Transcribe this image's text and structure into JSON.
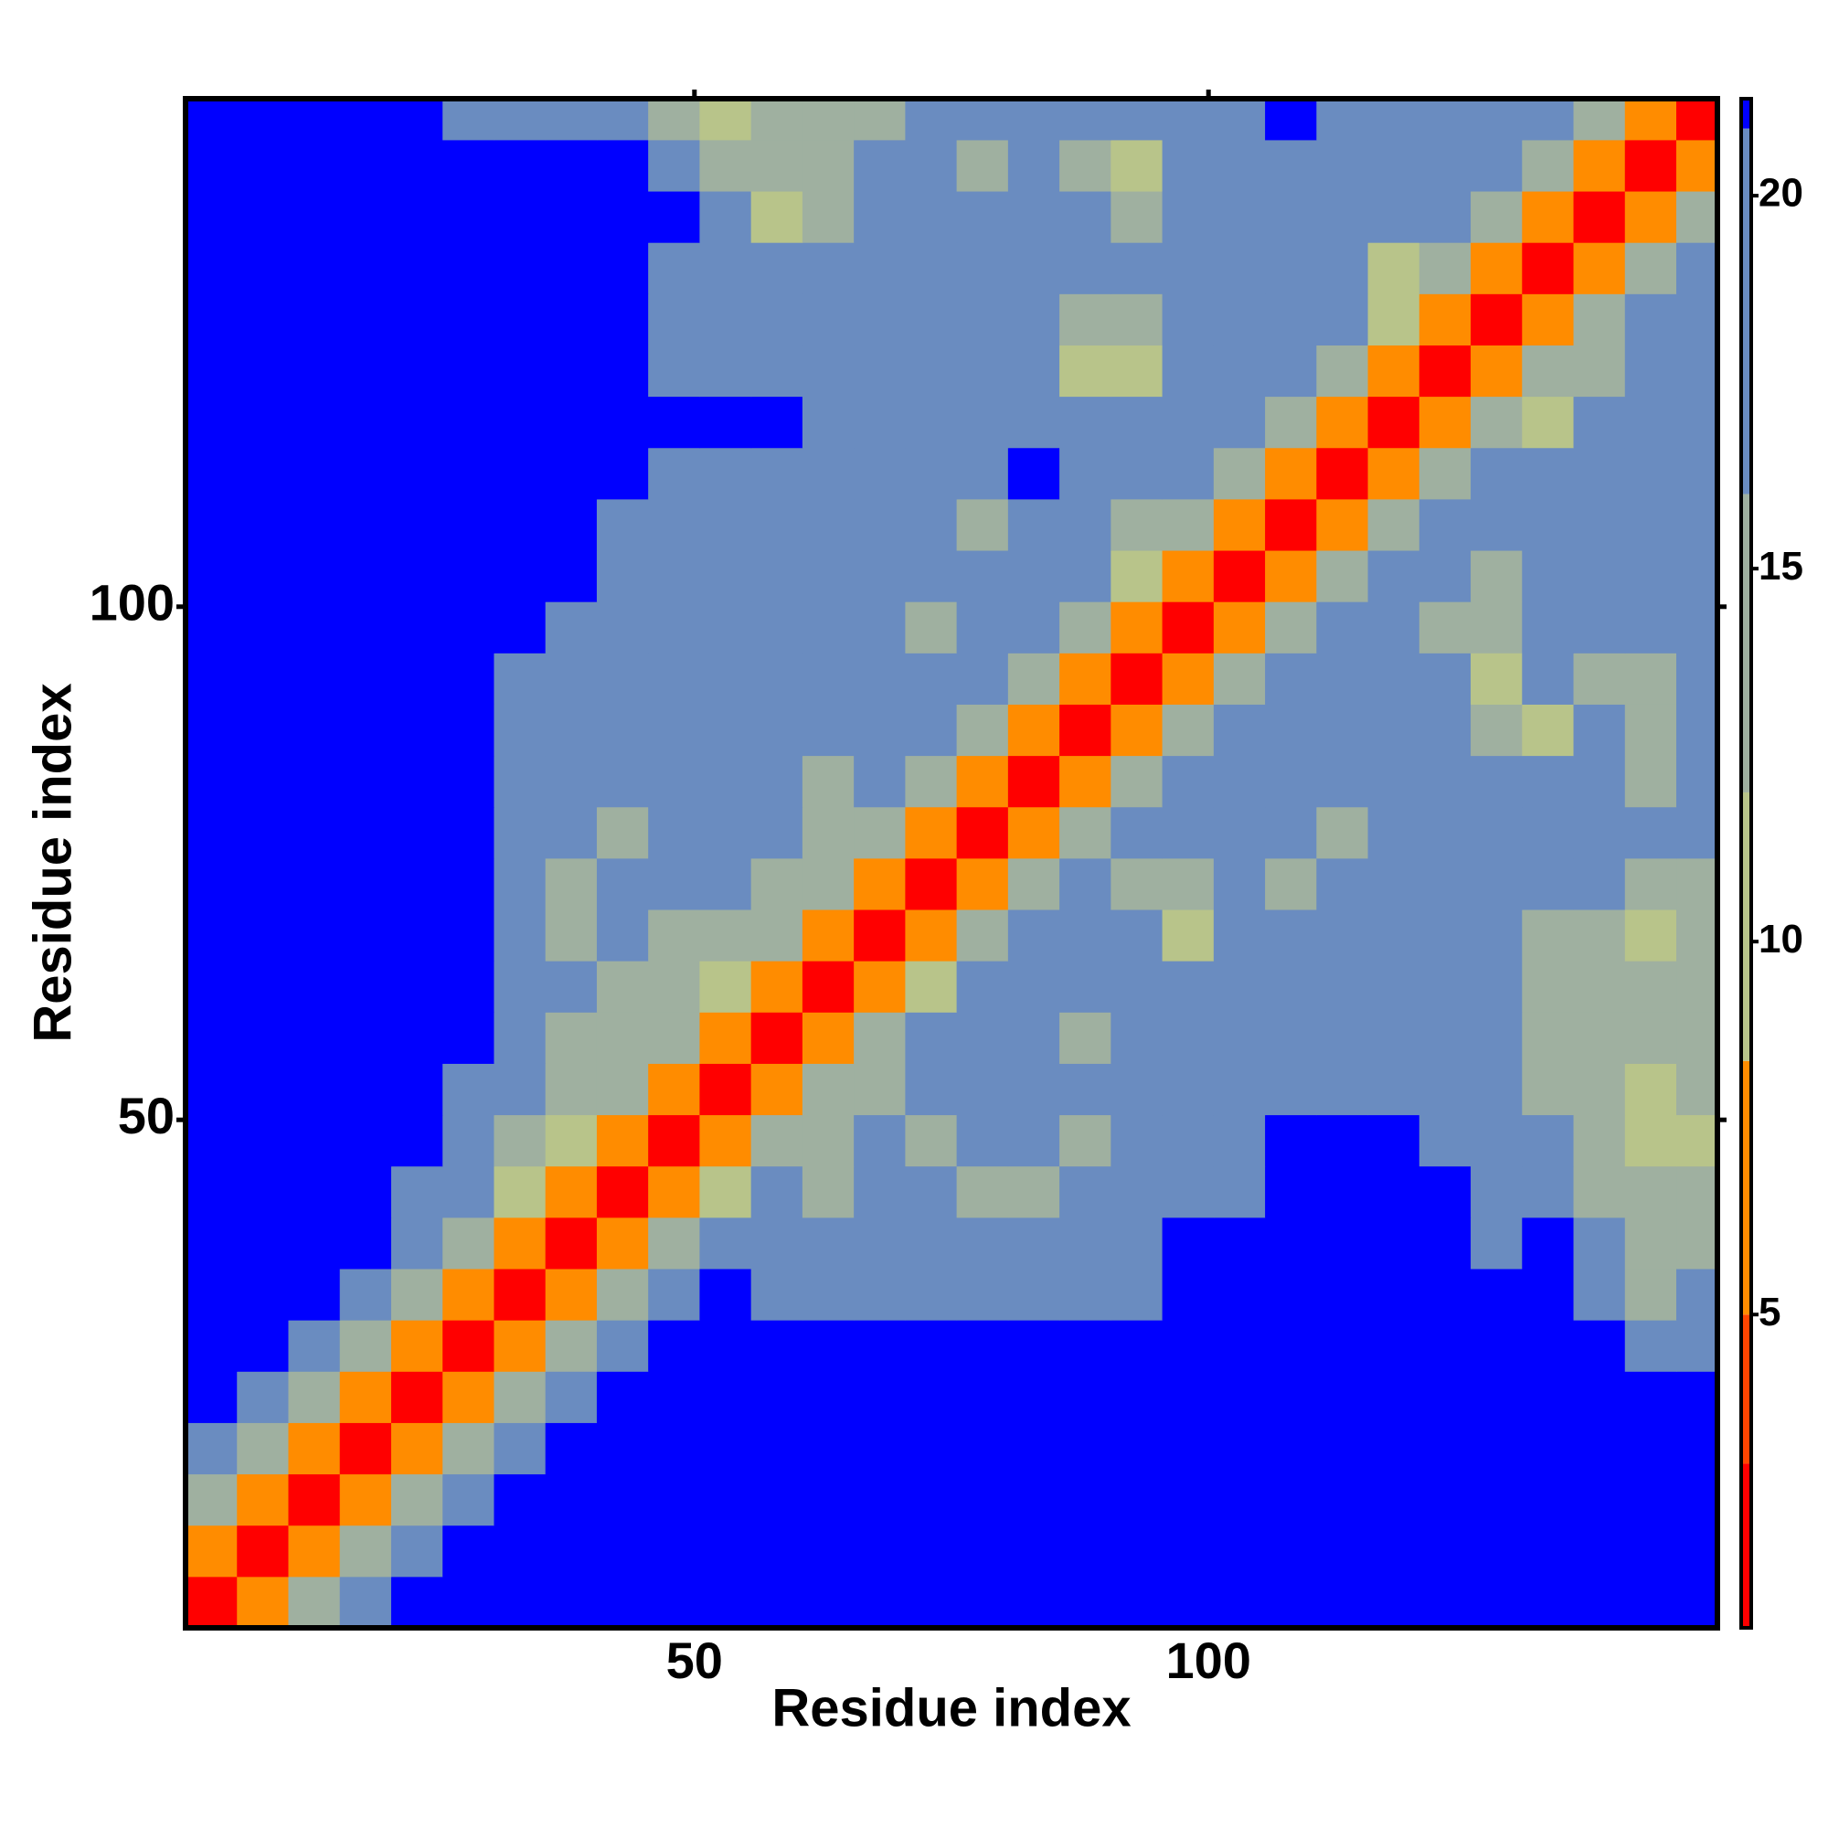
{
  "chart_data": {
    "type": "heatmap",
    "xlabel": "Residue index",
    "ylabel": "Residue index",
    "xlim": [
      0.5,
      149.5
    ],
    "ylim": [
      0.5,
      149.5
    ],
    "xticks": [
      50,
      100
    ],
    "yticks": [
      50,
      100
    ],
    "zlim": [
      0.8,
      21.3
    ],
    "zticks": [
      5,
      10,
      15,
      20
    ],
    "colorscale": [
      [
        0.8,
        "#ff0000"
      ],
      [
        3,
        "#ff4500"
      ],
      [
        5,
        "#ff8c00"
      ],
      [
        8.4,
        "#b8c48a"
      ],
      [
        12,
        "#9fb0a0"
      ],
      [
        16,
        "#6a8cc0"
      ],
      [
        20.9,
        "#0000ff"
      ]
    ],
    "x_bins": [
      0.5,
      5.5,
      10.5,
      15.5,
      20.5,
      25.5,
      30.5,
      35.5,
      40.5,
      45.5,
      50.5,
      55.5,
      60.5,
      65.5,
      70.5,
      75.5,
      80.5,
      85.5,
      90.5,
      95.5,
      100.5,
      105.5,
      110.5,
      115.5,
      120.5,
      125.5,
      130.5,
      135.5,
      140.5,
      145.5,
      149.5
    ],
    "y_bins": [
      0.5,
      5.5,
      10.5,
      15.5,
      20.5,
      25.5,
      30.5,
      35.5,
      40.5,
      45.5,
      50.5,
      55.5,
      60.5,
      65.5,
      70.5,
      75.5,
      80.5,
      85.5,
      90.5,
      95.5,
      100.5,
      105.5,
      110.5,
      115.5,
      120.5,
      125.5,
      130.5,
      135.5,
      140.5,
      145.5,
      149.5
    ],
    "z": [
      [
        2,
        6,
        12,
        18,
        21,
        21,
        21,
        21,
        21,
        21,
        21,
        21,
        21,
        21,
        21,
        21,
        21,
        21,
        21,
        21,
        21,
        21,
        21,
        21,
        21,
        21,
        21,
        21,
        21,
        21
      ],
      [
        6,
        2,
        6,
        12,
        18,
        21,
        21,
        21,
        21,
        21,
        21,
        21,
        21,
        21,
        21,
        21,
        21,
        21,
        21,
        21,
        21,
        21,
        21,
        21,
        21,
        21,
        21,
        21,
        21,
        21
      ],
      [
        12,
        6,
        2,
        6,
        12,
        18,
        21,
        21,
        21,
        21,
        21,
        21,
        21,
        21,
        21,
        21,
        21,
        21,
        21,
        21,
        21,
        21,
        21,
        21,
        21,
        21,
        21,
        21,
        21,
        21
      ],
      [
        18,
        12,
        6,
        2,
        6,
        12,
        18,
        21,
        21,
        21,
        21,
        21,
        21,
        21,
        21,
        21,
        21,
        21,
        21,
        21,
        21,
        21,
        21,
        21,
        21,
        21,
        21,
        21,
        21,
        21
      ],
      [
        21,
        18,
        12,
        6,
        2,
        6,
        12,
        18,
        21,
        21,
        21,
        21,
        21,
        21,
        21,
        21,
        21,
        21,
        21,
        21,
        21,
        21,
        21,
        21,
        21,
        21,
        21,
        21,
        21,
        21
      ],
      [
        21,
        21,
        18,
        12,
        6,
        2,
        6,
        12,
        19,
        21,
        21,
        21,
        21,
        21,
        21,
        21,
        21,
        21,
        21,
        21,
        21,
        21,
        21,
        21,
        21,
        21,
        21,
        21,
        19,
        19
      ],
      [
        21,
        21,
        21,
        18,
        12,
        6,
        2,
        6,
        13,
        17,
        21,
        19,
        19,
        19,
        19,
        19,
        19,
        19,
        19,
        21,
        21,
        21,
        21,
        21,
        21,
        21,
        21,
        17,
        15,
        18
      ],
      [
        21,
        21,
        21,
        21,
        17,
        12,
        6,
        2,
        6,
        12,
        16,
        17,
        17,
        16,
        16,
        16,
        17,
        17,
        19,
        21,
        21,
        21,
        21,
        21,
        21,
        19,
        21,
        16,
        13,
        15
      ],
      [
        21,
        21,
        21,
        21,
        19,
        16,
        11,
        6,
        2,
        6,
        11,
        16,
        15,
        16,
        16,
        15,
        15,
        16,
        17,
        19,
        19,
        21,
        21,
        21,
        21,
        19,
        18,
        15,
        12,
        13
      ],
      [
        21,
        21,
        21,
        21,
        21,
        17,
        14,
        10,
        6,
        2,
        6,
        13,
        15,
        16,
        15,
        17,
        16,
        15,
        17,
        20,
        18,
        21,
        21,
        21,
        19,
        18,
        16,
        13,
        9,
        9
      ],
      [
        21,
        21,
        21,
        21,
        21,
        19,
        16,
        14,
        13,
        6,
        2,
        6,
        13,
        15,
        20,
        20,
        16,
        16,
        16,
        18,
        18,
        19,
        18,
        19,
        18,
        17,
        15,
        12,
        9,
        12
      ],
      [
        21,
        21,
        21,
        21,
        21,
        21,
        16,
        15,
        14,
        12,
        6,
        2,
        6,
        12,
        17,
        20,
        16,
        15,
        16,
        19,
        20,
        18,
        19,
        18,
        17,
        16,
        13,
        12,
        14,
        15
      ],
      [
        21,
        21,
        21,
        21,
        21,
        21,
        17,
        16,
        15,
        14,
        11,
        7,
        2,
        6,
        11,
        17,
        18,
        16,
        17,
        19,
        20,
        20,
        19,
        17,
        18,
        16,
        14,
        14,
        12,
        14
      ],
      [
        21,
        21,
        21,
        21,
        21,
        21,
        17,
        15,
        16,
        15,
        14,
        13,
        6,
        2,
        6,
        13,
        18,
        16,
        16,
        9,
        17,
        17,
        18,
        20,
        19,
        17,
        15,
        15,
        9,
        14
      ],
      [
        21,
        21,
        21,
        21,
        21,
        21,
        18,
        15,
        16,
        16,
        16,
        14,
        12,
        6,
        2,
        6,
        14,
        16,
        15,
        15,
        16,
        14,
        16,
        20,
        19,
        17,
        16,
        16,
        14,
        13
      ],
      [
        21,
        21,
        21,
        21,
        21,
        21,
        18,
        16,
        15,
        17,
        17,
        16,
        14,
        12,
        6,
        2,
        6,
        15,
        17,
        18,
        18,
        16,
        15,
        18,
        18,
        16,
        17,
        16,
        17,
        18
      ],
      [
        21,
        21,
        21,
        21,
        21,
        21,
        18,
        16,
        16,
        17,
        18,
        16,
        15,
        16,
        12,
        6,
        2,
        6,
        14,
        17,
        20,
        20,
        19,
        16,
        17,
        16,
        16,
        16,
        15,
        17
      ],
      [
        21,
        21,
        21,
        21,
        21,
        21,
        19,
        16,
        17,
        17,
        17,
        17,
        16,
        17,
        16,
        13,
        6,
        2,
        6,
        15,
        20,
        20,
        19,
        17,
        16,
        12,
        10,
        16,
        15,
        16
      ],
      [
        21,
        21,
        21,
        21,
        21,
        21,
        19,
        17,
        16,
        18,
        18,
        17,
        16,
        16,
        17,
        16,
        14,
        6,
        2,
        6,
        14,
        17,
        17,
        17,
        16,
        10,
        16,
        15,
        13,
        17
      ],
      [
        21,
        21,
        21,
        21,
        21,
        21,
        21,
        19,
        17,
        16,
        16,
        16,
        16,
        16,
        13,
        17,
        16,
        13,
        6,
        2,
        6,
        13,
        16,
        18,
        15,
        14,
        17,
        16,
        17,
        19
      ],
      [
        21,
        21,
        21,
        21,
        21,
        21,
        21,
        21,
        20,
        18,
        17,
        17,
        16,
        16,
        18,
        17,
        17,
        16,
        11,
        7,
        2,
        6,
        12,
        16,
        16,
        15,
        17,
        18,
        17,
        18
      ],
      [
        21,
        21,
        21,
        21,
        21,
        21,
        21,
        21,
        20,
        19,
        19,
        17,
        16,
        16,
        16,
        15,
        20,
        17,
        15,
        12,
        7,
        2,
        6,
        14,
        17,
        17,
        18,
        19,
        18,
        20
      ],
      [
        21,
        21,
        21,
        21,
        21,
        21,
        21,
        21,
        21,
        19,
        20,
        18,
        17,
        16,
        16,
        18,
        21,
        17,
        16,
        17,
        15,
        6,
        2,
        6,
        13,
        17,
        17,
        18,
        19,
        19
      ],
      [
        21,
        21,
        21,
        21,
        21,
        21,
        21,
        21,
        21,
        21,
        21,
        21,
        18,
        16,
        16,
        18,
        20,
        17,
        16,
        16,
        16,
        13,
        6,
        2,
        6,
        13,
        11,
        16,
        18,
        19
      ],
      [
        21,
        21,
        21,
        21,
        21,
        21,
        21,
        21,
        21,
        20,
        19,
        18,
        17,
        17,
        17,
        18,
        18,
        10,
        11,
        17,
        18,
        16,
        14,
        6,
        2,
        6,
        12,
        12,
        17,
        18
      ],
      [
        21,
        21,
        21,
        21,
        21,
        21,
        21,
        21,
        21,
        19,
        19,
        16,
        17,
        16,
        18,
        18,
        16,
        15,
        14,
        20,
        20,
        17,
        16,
        11,
        6,
        2,
        6,
        12,
        17,
        19
      ],
      [
        21,
        21,
        21,
        21,
        21,
        21,
        21,
        21,
        21,
        19,
        20,
        18,
        17,
        17,
        16,
        17,
        18,
        17,
        16,
        18,
        18,
        18,
        17,
        9,
        13,
        6,
        2,
        6,
        14,
        18
      ],
      [
        21,
        21,
        21,
        21,
        21,
        21,
        21,
        21,
        21,
        21,
        18,
        10,
        12,
        16,
        18,
        17,
        18,
        16,
        15,
        16,
        18,
        18,
        17,
        16,
        16,
        13,
        6,
        2,
        6,
        15
      ],
      [
        21,
        21,
        21,
        21,
        21,
        21,
        21,
        21,
        21,
        16,
        14,
        13,
        15,
        16,
        17,
        14,
        18,
        15,
        9,
        16,
        18,
        18,
        19,
        16,
        17,
        16,
        13,
        6,
        2,
        6
      ],
      [
        21,
        21,
        21,
        21,
        21,
        19,
        17,
        16,
        17,
        15,
        9,
        13,
        14,
        15,
        16,
        18,
        17,
        17,
        17,
        19,
        19,
        21,
        19,
        16,
        17,
        17,
        16,
        14,
        6,
        2
      ]
    ]
  }
}
